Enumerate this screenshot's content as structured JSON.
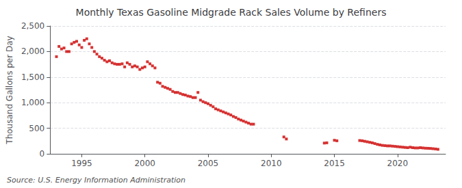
{
  "chart_data": {
    "type": "scatter",
    "title": "Monthly Texas Gasoline Midgrade Rack Sales Volume by Refiners",
    "ylabel": "Thousand Gallons per Day",
    "source": "Source: U.S. Energy Information Administration",
    "color": "#cc0000",
    "marker": "square",
    "grid": true,
    "xlim": [
      1992.5,
      2023.8
    ],
    "xticks": [
      1995,
      2000,
      2005,
      2010,
      2015,
      2020
    ],
    "ylim": [
      0,
      2500
    ],
    "yticks": [
      0,
      500,
      {
        "value": 1000,
        "label": "1,000"
      },
      {
        "value": 1500,
        "label": "1,500"
      },
      {
        "value": 2000,
        "label": "2,000"
      },
      {
        "value": 2500,
        "label": "2,500"
      }
    ],
    "x": [
      1993.0,
      1993.2,
      1993.4,
      1993.6,
      1993.8,
      1994.0,
      1994.2,
      1994.4,
      1994.6,
      1994.8,
      1995.0,
      1995.2,
      1995.4,
      1995.6,
      1995.8,
      1996.0,
      1996.2,
      1996.4,
      1996.6,
      1996.8,
      1997.0,
      1997.2,
      1997.4,
      1997.6,
      1997.8,
      1998.0,
      1998.2,
      1998.4,
      1998.6,
      1998.8,
      1999.0,
      1999.2,
      1999.4,
      1999.6,
      1999.8,
      2000.0,
      2000.2,
      2000.4,
      2000.6,
      2000.8,
      2001.0,
      2001.2,
      2001.4,
      2001.6,
      2001.8,
      2002.0,
      2002.2,
      2002.4,
      2002.6,
      2002.8,
      2003.0,
      2003.2,
      2003.4,
      2003.6,
      2003.8,
      2004.0,
      2004.2,
      2004.4,
      2004.6,
      2004.8,
      2005.0,
      2005.2,
      2005.4,
      2005.6,
      2005.8,
      2006.0,
      2006.2,
      2006.4,
      2006.6,
      2006.8,
      2007.0,
      2007.2,
      2007.4,
      2007.6,
      2007.8,
      2008.0,
      2008.2,
      2008.4,
      2008.6,
      2011.0,
      2011.2,
      2014.2,
      2014.4,
      2015.0,
      2015.2,
      2017.0,
      2017.2,
      2017.4,
      2017.6,
      2017.8,
      2018.0,
      2018.2,
      2018.4,
      2018.6,
      2018.8,
      2019.0,
      2019.2,
      2019.4,
      2019.6,
      2019.8,
      2020.0,
      2020.2,
      2020.4,
      2020.6,
      2020.8,
      2021.0,
      2021.2,
      2021.4,
      2021.6,
      2021.8,
      2022.0,
      2022.2,
      2022.4,
      2022.6,
      2022.8,
      2023.0,
      2023.2
    ],
    "values": [
      1900,
      2100,
      2050,
      2070,
      2000,
      2000,
      2150,
      2180,
      2200,
      2130,
      2080,
      2220,
      2250,
      2150,
      2080,
      2000,
      1950,
      1900,
      1870,
      1830,
      1800,
      1820,
      1780,
      1760,
      1750,
      1750,
      1760,
      1700,
      1780,
      1750,
      1700,
      1720,
      1700,
      1650,
      1680,
      1700,
      1800,
      1760,
      1720,
      1680,
      1400,
      1380,
      1320,
      1300,
      1280,
      1260,
      1220,
      1200,
      1200,
      1180,
      1160,
      1150,
      1130,
      1120,
      1100,
      1100,
      1200,
      1050,
      1020,
      1000,
      980,
      950,
      920,
      880,
      860,
      840,
      820,
      800,
      780,
      760,
      730,
      710,
      680,
      660,
      640,
      620,
      600,
      580,
      580,
      330,
      290,
      210,
      215,
      265,
      255,
      260,
      255,
      245,
      235,
      225,
      215,
      200,
      185,
      175,
      165,
      160,
      155,
      155,
      150,
      145,
      140,
      135,
      130,
      125,
      120,
      130,
      120,
      115,
      115,
      120,
      115,
      110,
      108,
      105,
      100,
      95,
      88
    ]
  }
}
